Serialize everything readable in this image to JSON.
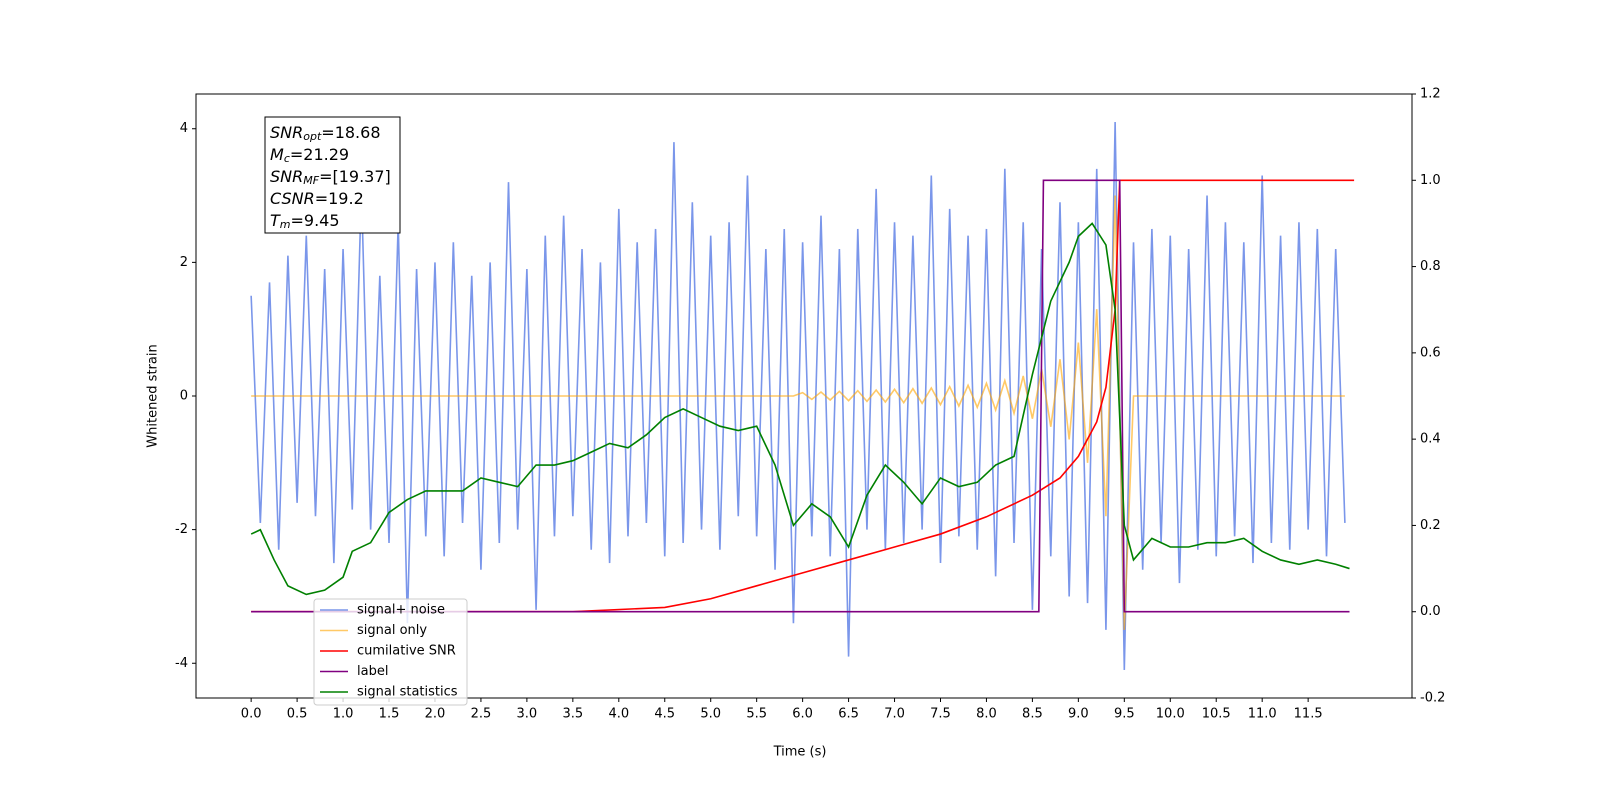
{
  "chart_data": {
    "type": "line",
    "xlabel": "Time (s)",
    "ylabel": "Whitened strain",
    "xlim": [
      -0.6,
      12.63
    ],
    "ylim": [
      -4.52,
      4.52
    ],
    "y2lim": [
      -0.2,
      1.2
    ],
    "xticks": [
      {
        "value": 0,
        "label": "0.0"
      },
      0.5,
      {
        "value": 1,
        "label": "1.0"
      },
      1.5,
      {
        "value": 2,
        "label": "2.0"
      },
      2.5,
      {
        "value": 3,
        "label": "3.0"
      },
      3.5,
      {
        "value": 4,
        "label": "4.0"
      },
      4.5,
      {
        "value": 5,
        "label": "5.0"
      },
      5.5,
      {
        "value": 6,
        "label": "6.0"
      },
      6.5,
      {
        "value": 7,
        "label": "7.0"
      },
      7.5,
      {
        "value": 8,
        "label": "8.0"
      },
      8.5,
      {
        "value": 9,
        "label": "9.0"
      },
      9.5,
      {
        "value": 10,
        "label": "10.0"
      },
      10.5,
      {
        "value": 11,
        "label": "11.0"
      },
      11.5
    ],
    "yticks": [
      -4,
      -2,
      0,
      2,
      4
    ],
    "y2ticks": [
      -0.2,
      {
        "value": 0,
        "label": "0.0"
      },
      0.2,
      0.4,
      0.6,
      0.8,
      {
        "value": 1,
        "label": "1.0"
      },
      1.2
    ],
    "annotation": [
      {
        "main": "SNR",
        "sub": "opt",
        "rest": "=18.68"
      },
      {
        "main": "M",
        "sub": "c",
        "rest": "=21.29"
      },
      {
        "main": "SNR",
        "sub": "MF",
        "rest": "=[19.37]"
      },
      {
        "main": "CSNR",
        "sub": "",
        "rest": "=19.2"
      },
      {
        "main": "T",
        "sub": "m",
        "rest": "=9.45"
      }
    ],
    "x": [
      0,
      0.1,
      0.2,
      0.3,
      0.4,
      0.5,
      0.6,
      0.7,
      0.8,
      0.9,
      1,
      1.1,
      1.2,
      1.3,
      1.4,
      1.5,
      1.6,
      1.7,
      1.8,
      1.9,
      2,
      2.1,
      2.2,
      2.3,
      2.4,
      2.5,
      2.6,
      2.7,
      2.8,
      2.9,
      3,
      3.1,
      3.2,
      3.3,
      3.4,
      3.5,
      3.6,
      3.7,
      3.8,
      3.9,
      4,
      4.1,
      4.2,
      4.3,
      4.4,
      4.5,
      4.6,
      4.7,
      4.8,
      4.9,
      5,
      5.1,
      5.2,
      5.3,
      5.4,
      5.5,
      5.6,
      5.7,
      5.8,
      5.9,
      6,
      6.1,
      6.2,
      6.3,
      6.4,
      6.5,
      6.6,
      6.7,
      6.8,
      6.9,
      7,
      7.1,
      7.2,
      7.3,
      7.4,
      7.5,
      7.6,
      7.7,
      7.8,
      7.9,
      8,
      8.1,
      8.2,
      8.3,
      8.4,
      8.5,
      8.6,
      8.7,
      8.8,
      8.9,
      9,
      9.1,
      9.2,
      9.3,
      9.4,
      9.5,
      9.6,
      9.7,
      9.8,
      9.9,
      10,
      10.1,
      10.2,
      10.3,
      10.4,
      10.5,
      10.6,
      10.7,
      10.8,
      10.9,
      11,
      11.1,
      11.2,
      11.3,
      11.4,
      11.5,
      11.6,
      11.7,
      11.8,
      11.9
    ],
    "series": [
      {
        "name": "signal+ noise",
        "color": "#4169e1",
        "axis": "y",
        "values": [
          1.5,
          -1.9,
          1.7,
          -2.3,
          2.1,
          -1.6,
          2.4,
          -1.8,
          1.9,
          -2.5,
          2.2,
          -1.7,
          3.1,
          -2.0,
          1.8,
          -2.2,
          2.6,
          -3.4,
          1.9,
          -2.1,
          2.0,
          -2.4,
          2.3,
          -1.9,
          1.8,
          -2.6,
          2.0,
          -2.2,
          3.2,
          -2.0,
          1.9,
          -3.2,
          2.4,
          -2.1,
          2.7,
          -1.8,
          2.2,
          -2.3,
          2.0,
          -2.5,
          2.8,
          -2.1,
          2.3,
          -1.9,
          2.5,
          -2.4,
          3.8,
          -2.2,
          2.9,
          -2.0,
          2.4,
          -2.3,
          2.6,
          -1.8,
          3.3,
          -2.1,
          2.2,
          -2.6,
          2.5,
          -3.4,
          2.3,
          -2.1,
          2.7,
          -2.4,
          2.2,
          -3.9,
          2.5,
          -2.0,
          3.1,
          -2.3,
          2.6,
          -2.2,
          2.4,
          -2.0,
          3.3,
          -2.5,
          2.8,
          -2.1,
          2.4,
          -2.3,
          2.5,
          -2.7,
          3.4,
          -2.2,
          2.6,
          -3.2,
          2.2,
          -2.4,
          2.9,
          -3.0,
          2.6,
          -3.1,
          3.4,
          -3.5,
          4.1,
          -4.1,
          2.3,
          -2.6,
          2.5,
          -2.2,
          2.4,
          -2.8,
          2.2,
          -2.3,
          3.0,
          -2.4,
          2.6,
          -2.1,
          2.3,
          -2.5,
          3.3,
          -2.2,
          2.4,
          -2.3,
          2.6,
          -2.0,
          2.5,
          -2.4,
          2.2,
          -1.9
        ]
      },
      {
        "name": "signal only",
        "color": "#ffa500",
        "axis": "y",
        "values": [
          0,
          0,
          0,
          0,
          0,
          0,
          0,
          0,
          0,
          0,
          0,
          0,
          0,
          0,
          0,
          0,
          0,
          0,
          0,
          0,
          0,
          0,
          0,
          0,
          0,
          0,
          0,
          0,
          0,
          0,
          0,
          0,
          0,
          0,
          0,
          0,
          0,
          0,
          0,
          0,
          0,
          0,
          0,
          0,
          0,
          0,
          0,
          0,
          0,
          0,
          0,
          0,
          0,
          0,
          0,
          0,
          0,
          0,
          0,
          0,
          0.05,
          -0.05,
          0.06,
          -0.06,
          0.07,
          -0.07,
          0.08,
          -0.08,
          0.09,
          -0.09,
          0.1,
          -0.1,
          0.11,
          -0.11,
          0.12,
          -0.13,
          0.14,
          -0.15,
          0.16,
          -0.17,
          0.19,
          -0.21,
          0.23,
          -0.26,
          0.3,
          -0.34,
          0.4,
          -0.46,
          0.55,
          -0.65,
          0.8,
          -1.0,
          1.3,
          -1.8,
          3.0,
          -3.5,
          0,
          0,
          0,
          0,
          0,
          0,
          0,
          0,
          0,
          0,
          0,
          0,
          0,
          0,
          0,
          0,
          0,
          0,
          0,
          0,
          0,
          0,
          0,
          0
        ]
      },
      {
        "name": "cumilative SNR",
        "color": "#ff0000",
        "axis": "y2",
        "x": [
          0,
          3.5,
          4.5,
          5,
          5.5,
          6,
          6.5,
          7,
          7.5,
          8,
          8.5,
          8.8,
          9.0,
          9.2,
          9.3,
          9.4,
          9.45,
          9.46,
          12.0
        ],
        "values": [
          0,
          0,
          0.01,
          0.03,
          0.06,
          0.09,
          0.12,
          0.15,
          0.18,
          0.22,
          0.27,
          0.31,
          0.36,
          0.44,
          0.52,
          0.7,
          1.0,
          1.0,
          1.0
        ]
      },
      {
        "name": "label",
        "color": "#800080",
        "axis": "y2",
        "x": [
          0,
          8.57,
          8.62,
          9.45,
          9.5,
          11.95
        ],
        "values": [
          0,
          0,
          1,
          1,
          0,
          0
        ]
      },
      {
        "name": "signal statistics",
        "color": "#008000",
        "axis": "y2",
        "x": [
          0,
          0.1,
          0.25,
          0.4,
          0.6,
          0.8,
          1.0,
          1.1,
          1.3,
          1.5,
          1.7,
          1.9,
          2.1,
          2.3,
          2.5,
          2.7,
          2.9,
          3.1,
          3.3,
          3.5,
          3.7,
          3.9,
          4.1,
          4.3,
          4.5,
          4.7,
          4.9,
          5.1,
          5.3,
          5.5,
          5.7,
          5.9,
          6.1,
          6.3,
          6.5,
          6.7,
          6.9,
          7.1,
          7.3,
          7.5,
          7.7,
          7.9,
          8.1,
          8.3,
          8.5,
          8.7,
          8.9,
          9.0,
          9.15,
          9.3,
          9.4,
          9.5,
          9.6,
          9.8,
          10.0,
          10.2,
          10.4,
          10.6,
          10.8,
          11.0,
          11.2,
          11.4,
          11.6,
          11.8,
          11.95
        ],
        "values": [
          0.18,
          0.19,
          0.12,
          0.06,
          0.04,
          0.05,
          0.08,
          0.14,
          0.16,
          0.23,
          0.26,
          0.28,
          0.28,
          0.28,
          0.31,
          0.3,
          0.29,
          0.34,
          0.34,
          0.35,
          0.37,
          0.39,
          0.38,
          0.41,
          0.45,
          0.47,
          0.45,
          0.43,
          0.42,
          0.43,
          0.34,
          0.2,
          0.25,
          0.22,
          0.15,
          0.27,
          0.34,
          0.3,
          0.25,
          0.31,
          0.29,
          0.3,
          0.34,
          0.36,
          0.55,
          0.72,
          0.81,
          0.87,
          0.9,
          0.85,
          0.7,
          0.2,
          0.12,
          0.17,
          0.15,
          0.15,
          0.16,
          0.16,
          0.17,
          0.14,
          0.12,
          0.11,
          0.12,
          0.11,
          0.1
        ]
      }
    ]
  }
}
